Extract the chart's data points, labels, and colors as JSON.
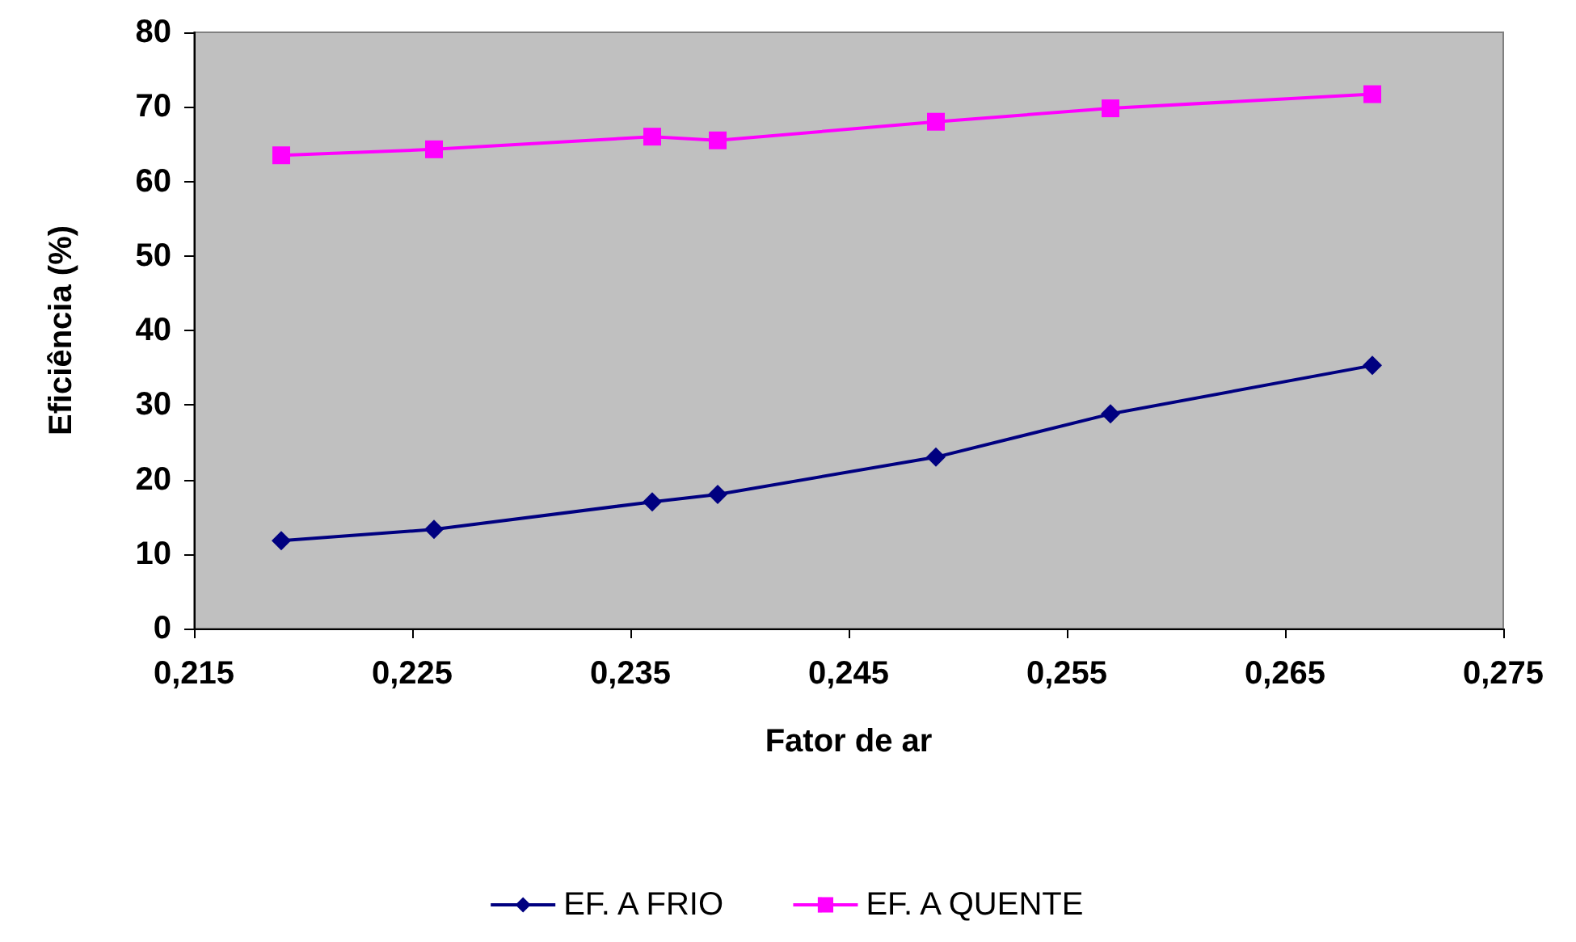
{
  "chart_data": {
    "type": "line",
    "xlabel": "Fator de ar",
    "ylabel": "Eficiência (%)",
    "x": [
      0.219,
      0.226,
      0.236,
      0.239,
      0.249,
      0.257,
      0.269
    ],
    "series": [
      {
        "name": "EF. A FRIO",
        "color": "#000080",
        "marker": "diamond",
        "values": [
          11.8,
          13.3,
          17,
          18,
          23,
          28.8,
          35.3
        ]
      },
      {
        "name": "EF. A QUENTE",
        "color": "#ff00ff",
        "marker": "square",
        "values": [
          63.5,
          64.3,
          66,
          65.5,
          68,
          69.8,
          71.7
        ]
      }
    ],
    "xlim": [
      0.215,
      0.275
    ],
    "xticks": [
      {
        "value": 0.215,
        "label": "0,215"
      },
      {
        "value": 0.225,
        "label": "0,225"
      },
      {
        "value": 0.235,
        "label": "0,235"
      },
      {
        "value": 0.245,
        "label": "0,245"
      },
      {
        "value": 0.255,
        "label": "0,255"
      },
      {
        "value": 0.265,
        "label": "0,265"
      },
      {
        "value": 0.275,
        "label": "0,275"
      }
    ],
    "ylim": [
      0,
      80
    ],
    "yticks": [
      0,
      10,
      20,
      30,
      40,
      50,
      60,
      70,
      80
    ],
    "grid": false,
    "legend": "bottom"
  }
}
